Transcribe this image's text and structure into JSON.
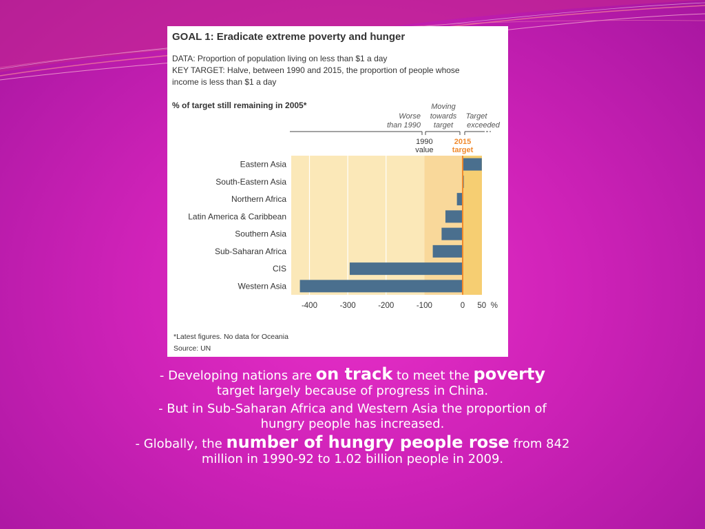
{
  "figure": {
    "title": "GOAL 1: Eradicate extreme poverty and hunger",
    "data_line": "DATA: Proportion of population living on less than $1 a day",
    "target_line1": "KEY TARGET: Halve, between 1990 and 2015, the proportion of people whose",
    "target_line2": "income is less than $1 a day",
    "subtitle": "% of target still remaining in 2005*",
    "footnote": "*Latest figures. No data for Oceania",
    "source": "Source: UN"
  },
  "chart_data": {
    "type": "bar",
    "orientation": "horizontal",
    "categories": [
      "Eastern Asia",
      "South-Eastern Asia",
      "Northern Africa",
      "Latin America & Caribbean",
      "Southern Asia",
      "Sub-Saharan Africa",
      "CIS",
      "Western Asia"
    ],
    "values": [
      50,
      3,
      -15,
      -45,
      -55,
      -78,
      -295,
      -425
    ],
    "xlim": [
      -435,
      55
    ],
    "xticks": [
      -400,
      -300,
      -200,
      -100,
      0,
      50
    ],
    "xtick_labels": [
      "-400",
      "-300",
      "-200",
      "-100",
      "0",
      "50"
    ],
    "x_unit": "%",
    "zone_labels": {
      "worse_1": "Worse",
      "worse_2": "than 1990",
      "moving_1": "Moving",
      "moving_2": "towards",
      "moving_3": "target",
      "exceeded_1": "Target",
      "exceeded_2": "exceeded"
    },
    "marker_labels": {
      "v1990_1": "1990",
      "v1990_2": "value",
      "t2015_1": "2015",
      "t2015_2": "target"
    },
    "colors": {
      "bar": "#4a6f8e",
      "zone_worse": "#fbe8b8",
      "zone_moving": "#f9d89a",
      "zone_exceeded": "#f6ce72",
      "target_line": "#f0892c",
      "target_text": "#f0892c"
    },
    "grid": true
  },
  "caption": {
    "l1_a": "- Developing nations are ",
    "l1_b": "on track",
    "l1_c": " to meet the ",
    "l1_d": "poverty",
    "l1_e": "target largely because of progress in China.",
    "l2": "- But in Sub-Saharan Africa and Western Asia the proportion of hungry people has increased.",
    "l3_a": "- Globally, the ",
    "l3_b": "number of hungry people rose",
    "l3_c": " from 842 million in 1990-92 to 1.02 billion people in 2009."
  }
}
